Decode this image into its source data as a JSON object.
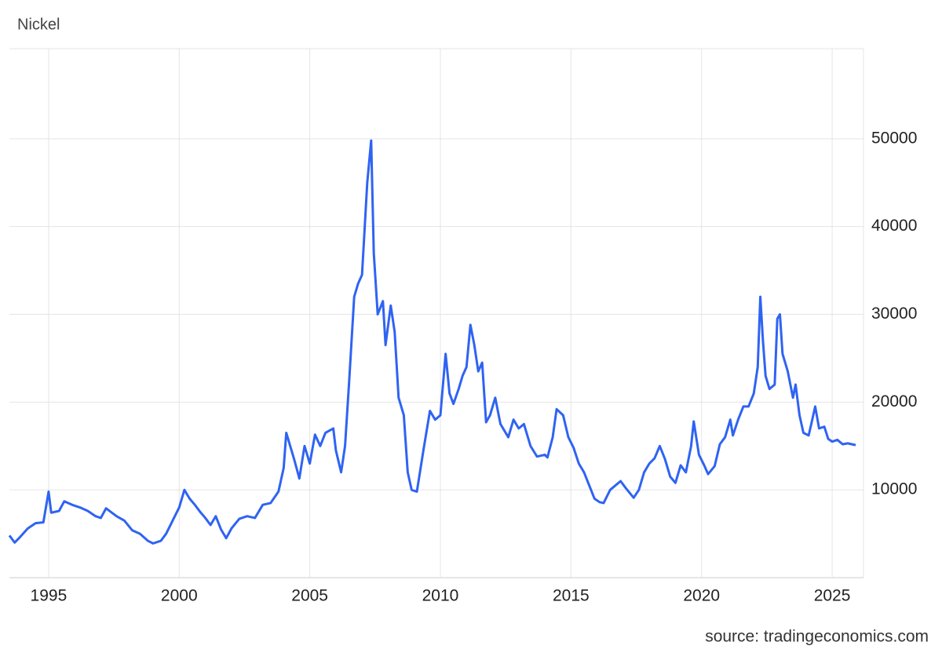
{
  "chart_data": {
    "type": "line",
    "title": "Nickel",
    "source": "source: tradingeconomics.com",
    "xlim": [
      1993.5,
      2026.2
    ],
    "xticks": [
      1995,
      2000,
      2005,
      2010,
      2015,
      2020,
      2025
    ],
    "ylim": [
      0,
      60000
    ],
    "yticks": [
      10000,
      20000,
      30000,
      40000,
      50000
    ],
    "grid": true,
    "x": [
      1993.5,
      1993.7,
      1993.9,
      1994.2,
      1994.5,
      1994.8,
      1995.0,
      1995.1,
      1995.4,
      1995.6,
      1995.9,
      1996.2,
      1996.5,
      1996.8,
      1997.0,
      1997.2,
      1997.6,
      1997.9,
      1998.2,
      1998.5,
      1998.8,
      1999.0,
      1999.3,
      1999.5,
      1999.8,
      2000.0,
      2000.2,
      2000.4,
      2000.6,
      2000.8,
      2001.0,
      2001.2,
      2001.4,
      2001.6,
      2001.8,
      2002.0,
      2002.3,
      2002.6,
      2002.9,
      2003.2,
      2003.5,
      2003.8,
      2004.0,
      2004.1,
      2004.4,
      2004.6,
      2004.8,
      2005.0,
      2005.2,
      2005.4,
      2005.6,
      2005.9,
      2006.0,
      2006.2,
      2006.35,
      2006.5,
      2006.7,
      2006.85,
      2007.0,
      2007.2,
      2007.35,
      2007.45,
      2007.6,
      2007.8,
      2007.9,
      2008.1,
      2008.25,
      2008.4,
      2008.6,
      2008.75,
      2008.9,
      2009.1,
      2009.35,
      2009.6,
      2009.8,
      2010.0,
      2010.2,
      2010.35,
      2010.5,
      2010.7,
      2010.85,
      2011.0,
      2011.15,
      2011.3,
      2011.45,
      2011.6,
      2011.75,
      2011.9,
      2012.1,
      2012.3,
      2012.6,
      2012.8,
      2013.0,
      2013.2,
      2013.45,
      2013.7,
      2014.0,
      2014.1,
      2014.3,
      2014.45,
      2014.7,
      2014.9,
      2015.1,
      2015.3,
      2015.5,
      2015.7,
      2015.9,
      2016.1,
      2016.25,
      2016.5,
      2016.7,
      2016.9,
      2017.1,
      2017.4,
      2017.6,
      2017.8,
      2018.0,
      2018.2,
      2018.4,
      2018.6,
      2018.8,
      2019.0,
      2019.2,
      2019.4,
      2019.6,
      2019.7,
      2019.9,
      2020.1,
      2020.25,
      2020.5,
      2020.7,
      2020.9,
      2021.1,
      2021.2,
      2021.4,
      2021.6,
      2021.8,
      2022.0,
      2022.15,
      2022.25,
      2022.35,
      2022.45,
      2022.6,
      2022.8,
      2022.9,
      2023.0,
      2023.1,
      2023.3,
      2023.5,
      2023.6,
      2023.75,
      2023.9,
      2024.1,
      2024.2,
      2024.35,
      2024.5,
      2024.7,
      2024.85,
      2025.0,
      2025.2,
      2025.4,
      2025.6,
      2025.9
    ],
    "series": [
      {
        "name": "Nickel",
        "color": "#2f63f2",
        "values": [
          4800,
          4000,
          4600,
          5600,
          6200,
          6300,
          9800,
          7400,
          7600,
          8700,
          8300,
          8000,
          7600,
          7000,
          6800,
          7900,
          7000,
          6500,
          5400,
          5000,
          4200,
          3900,
          4200,
          5000,
          6800,
          8000,
          10000,
          9000,
          8300,
          7500,
          6800,
          6000,
          7000,
          5500,
          4500,
          5600,
          6700,
          7000,
          6800,
          8300,
          8500,
          9800,
          12500,
          16500,
          13500,
          11300,
          15000,
          13000,
          16300,
          15000,
          16500,
          17000,
          14500,
          12000,
          15000,
          22000,
          32000,
          33500,
          34500,
          45000,
          49800,
          37000,
          30000,
          31500,
          26500,
          31000,
          28000,
          20500,
          18500,
          12000,
          10000,
          9800,
          14500,
          19000,
          18000,
          18500,
          25500,
          21000,
          19800,
          21500,
          23000,
          24000,
          28800,
          26500,
          23500,
          24500,
          17700,
          18500,
          20500,
          17500,
          16000,
          18000,
          17000,
          17500,
          15000,
          13800,
          14000,
          13700,
          16000,
          19200,
          18500,
          16000,
          14800,
          13000,
          12000,
          10500,
          9000,
          8600,
          8500,
          10000,
          10500,
          11000,
          10200,
          9100,
          10000,
          12000,
          13000,
          13600,
          15000,
          13500,
          11500,
          10800,
          12800,
          12000,
          15000,
          17800,
          14000,
          12800,
          11800,
          12700,
          15200,
          16000,
          18000,
          16200,
          18000,
          19500,
          19500,
          21000,
          24000,
          32000,
          27000,
          23000,
          21500,
          22000,
          29500,
          30000,
          25500,
          23500,
          20500,
          22000,
          18500,
          16500,
          16200,
          17500,
          19500,
          17000,
          17200,
          15800,
          15500,
          15700,
          15200,
          15300,
          15100
        ]
      }
    ]
  }
}
